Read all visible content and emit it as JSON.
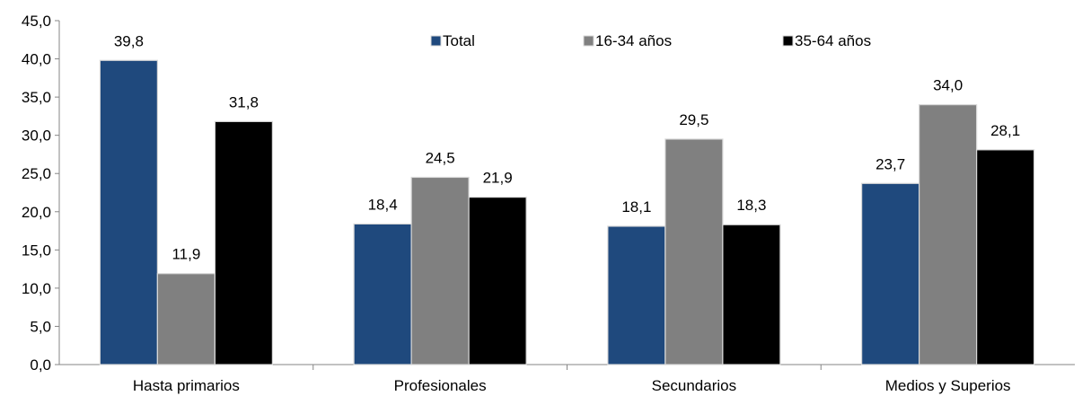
{
  "chart_data": {
    "type": "bar",
    "categories": [
      "Hasta primarios",
      "Profesionales",
      "Secundarios",
      "Medios y Superios"
    ],
    "series": [
      {
        "name": "Total",
        "color": "#1F497D",
        "values": [
          39.8,
          18.4,
          18.1,
          23.7
        ],
        "labels": [
          "39,8",
          "18,4",
          "18,1",
          "23,7"
        ]
      },
      {
        "name": "16-34 años",
        "color": "#808080",
        "values": [
          11.9,
          24.5,
          29.5,
          34.0
        ],
        "labels": [
          "11,9",
          "24,5",
          "29,5",
          "34,0"
        ]
      },
      {
        "name": "35-64 años",
        "color": "#000000",
        "values": [
          31.8,
          21.9,
          18.3,
          28.1
        ],
        "labels": [
          "31,8",
          "21,9",
          "18,3",
          "28,1"
        ]
      }
    ],
    "ylim": [
      0,
      45
    ],
    "ytick_values": [
      0,
      5,
      10,
      15,
      20,
      25,
      30,
      35,
      40,
      45
    ],
    "ytick_labels": [
      "0,0",
      "5,0",
      "10,0",
      "15,0",
      "20,0",
      "25,0",
      "30,0",
      "35,0",
      "40,0",
      "45,0"
    ],
    "title": "",
    "xlabel": "",
    "ylabel": "",
    "grid": false,
    "legend_position": "top-center"
  }
}
